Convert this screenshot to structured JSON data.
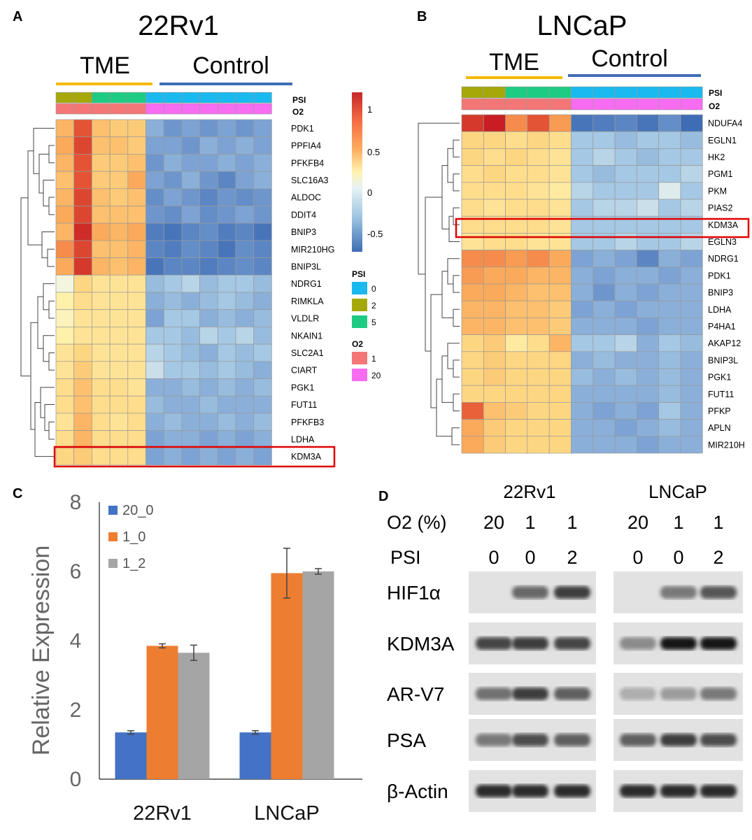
{
  "panelA": {
    "letter": "A",
    "title": "22Rv1",
    "group_tme": "TME",
    "group_control": "Control",
    "row_labels": [
      "PDK1",
      "PPFIA4",
      "PFKFB4",
      "SLC16A3",
      "ALDOC",
      "DDIT4",
      "BNIP3",
      "MIR210HG",
      "BNIP3L",
      "NDRG1",
      "RIMKLA",
      "VLDLR",
      "NKAIN1",
      "SLC2A1",
      "CIART",
      "PGK1",
      "FUT11",
      "PFKFB3",
      "LDHA",
      "KDM3A"
    ],
    "highlight_row": "KDM3A",
    "annotation_labels": [
      "PSI",
      "O2"
    ],
    "psi_cols": [
      2,
      2,
      5,
      5,
      5,
      0,
      0,
      0,
      0,
      0,
      0,
      0
    ],
    "o2_cols": [
      1,
      1,
      1,
      1,
      1,
      20,
      20,
      20,
      20,
      20,
      20,
      20
    ],
    "values": [
      [
        0.55,
        0.9,
        0.5,
        0.45,
        0.45,
        -0.3,
        -0.4,
        -0.35,
        -0.4,
        -0.35,
        -0.4,
        -0.35
      ],
      [
        0.6,
        0.95,
        0.5,
        0.5,
        0.45,
        -0.35,
        -0.35,
        -0.4,
        -0.3,
        -0.35,
        -0.3,
        -0.35
      ],
      [
        0.55,
        0.9,
        0.45,
        0.45,
        0.5,
        -0.4,
        -0.3,
        -0.35,
        -0.35,
        -0.3,
        -0.35,
        -0.3
      ],
      [
        0.5,
        0.9,
        0.45,
        0.45,
        0.6,
        -0.35,
        -0.4,
        -0.3,
        -0.4,
        -0.5,
        -0.35,
        -0.3
      ],
      [
        0.55,
        0.95,
        0.5,
        0.45,
        0.5,
        -0.45,
        -0.35,
        -0.4,
        -0.5,
        -0.4,
        -0.45,
        -0.4
      ],
      [
        0.6,
        0.95,
        0.5,
        0.5,
        0.5,
        -0.4,
        -0.45,
        -0.35,
        -0.45,
        -0.4,
        -0.35,
        -0.4
      ],
      [
        0.55,
        1.05,
        0.6,
        0.55,
        0.6,
        -0.55,
        -0.6,
        -0.5,
        -0.45,
        -0.55,
        -0.5,
        -0.6
      ],
      [
        0.7,
        0.95,
        0.5,
        0.5,
        0.55,
        -0.5,
        -0.55,
        -0.45,
        -0.5,
        -0.6,
        -0.45,
        -0.5
      ],
      [
        0.6,
        1.0,
        0.55,
        0.5,
        0.55,
        -0.6,
        -0.5,
        -0.5,
        -0.55,
        -0.5,
        -0.45,
        -0.5
      ],
      [
        0.05,
        0.4,
        0.3,
        0.3,
        0.3,
        -0.25,
        -0.2,
        -0.15,
        -0.25,
        -0.2,
        -0.2,
        -0.25
      ],
      [
        0.2,
        0.35,
        0.3,
        0.3,
        0.3,
        -0.3,
        -0.25,
        -0.3,
        -0.25,
        -0.2,
        -0.25,
        -0.3
      ],
      [
        0.15,
        0.3,
        0.3,
        0.3,
        0.3,
        -0.35,
        -0.2,
        -0.2,
        -0.3,
        -0.25,
        -0.3,
        -0.25
      ],
      [
        0.2,
        0.3,
        0.3,
        0.3,
        0.3,
        -0.2,
        -0.2,
        -0.25,
        -0.15,
        -0.2,
        -0.15,
        -0.25
      ],
      [
        0.3,
        0.4,
        0.3,
        0.3,
        0.3,
        -0.15,
        -0.2,
        -0.25,
        -0.3,
        -0.2,
        -0.25,
        -0.2
      ],
      [
        0.3,
        0.45,
        0.3,
        0.3,
        0.3,
        -0.1,
        -0.2,
        -0.2,
        -0.25,
        -0.2,
        -0.25,
        -0.3
      ],
      [
        0.35,
        0.5,
        0.35,
        0.35,
        0.3,
        -0.3,
        -0.3,
        -0.25,
        -0.3,
        -0.25,
        -0.3,
        -0.25
      ],
      [
        0.35,
        0.5,
        0.35,
        0.35,
        0.35,
        -0.25,
        -0.3,
        -0.3,
        -0.25,
        -0.3,
        -0.3,
        -0.3
      ],
      [
        0.3,
        0.55,
        0.35,
        0.3,
        0.35,
        -0.3,
        -0.25,
        -0.3,
        -0.3,
        -0.25,
        -0.3,
        -0.25
      ],
      [
        0.35,
        0.55,
        0.35,
        0.35,
        0.35,
        -0.35,
        -0.3,
        -0.3,
        -0.35,
        -0.3,
        -0.35,
        -0.3
      ],
      [
        0.4,
        0.45,
        0.35,
        0.35,
        0.35,
        -0.35,
        -0.3,
        -0.35,
        -0.3,
        -0.35,
        -0.3,
        -0.35
      ]
    ]
  },
  "legend": {
    "scale_ticks": [
      "1",
      "0.5",
      "0",
      "-0.5"
    ],
    "psi_title": "PSI",
    "psi_items": [
      "0",
      "2",
      "5"
    ],
    "o2_title": "O2",
    "o2_items": [
      "1",
      "20"
    ]
  },
  "panelB": {
    "letter": "B",
    "title": "LNCaP",
    "group_tme": "TME",
    "group_control": "Control",
    "row_labels": [
      "NDUFA4",
      "EGLN1",
      "HK2",
      "PGM1",
      "PKM",
      "PIAS2",
      "KDM3A",
      "EGLN3",
      "NDRG1",
      "PDK1",
      "BNIP3",
      "LDHA",
      "P4HA1",
      "AKAP12",
      "BNIP3L",
      "PGK1",
      "FUT11",
      "PFKP",
      "APLN",
      "MIR210H"
    ],
    "highlight_row": "KDM3A",
    "annotation_labels": [
      "PSI",
      "O2"
    ],
    "psi_cols": [
      2,
      2,
      5,
      5,
      5,
      0,
      0,
      0,
      0,
      0,
      0
    ],
    "o2_cols": [
      1,
      1,
      1,
      1,
      1,
      20,
      20,
      20,
      20,
      20,
      20
    ],
    "values": [
      [
        1.0,
        1.1,
        0.7,
        0.9,
        0.65,
        -0.6,
        -0.55,
        -0.5,
        -0.6,
        -0.45,
        -0.7
      ],
      [
        0.4,
        0.4,
        0.35,
        0.4,
        0.35,
        -0.2,
        -0.2,
        -0.25,
        -0.2,
        -0.2,
        -0.25
      ],
      [
        0.4,
        0.35,
        0.4,
        0.35,
        0.3,
        -0.2,
        -0.15,
        -0.2,
        -0.25,
        -0.2,
        -0.2
      ],
      [
        0.35,
        0.4,
        0.35,
        0.35,
        0.3,
        -0.2,
        -0.25,
        -0.2,
        -0.2,
        -0.2,
        -0.15
      ],
      [
        0.35,
        0.35,
        0.35,
        0.3,
        0.25,
        -0.15,
        -0.2,
        -0.2,
        -0.2,
        -0.05,
        -0.2
      ],
      [
        0.35,
        0.3,
        0.35,
        0.35,
        0.3,
        -0.2,
        -0.15,
        -0.15,
        -0.1,
        -0.2,
        -0.15
      ],
      [
        0.35,
        0.35,
        0.35,
        0.35,
        0.3,
        -0.2,
        -0.2,
        -0.2,
        -0.2,
        -0.2,
        -0.2
      ],
      [
        0.3,
        0.35,
        0.35,
        0.3,
        0.3,
        -0.2,
        -0.2,
        -0.15,
        -0.2,
        -0.2,
        -0.15
      ],
      [
        0.7,
        0.7,
        0.65,
        0.7,
        0.6,
        -0.35,
        -0.3,
        -0.35,
        -0.5,
        -0.3,
        -0.35
      ],
      [
        0.65,
        0.6,
        0.6,
        0.55,
        0.55,
        -0.3,
        -0.35,
        -0.3,
        -0.3,
        -0.35,
        -0.3
      ],
      [
        0.6,
        0.6,
        0.55,
        0.5,
        0.5,
        -0.3,
        -0.4,
        -0.3,
        -0.35,
        -0.3,
        -0.3
      ],
      [
        0.55,
        0.55,
        0.5,
        0.5,
        0.45,
        -0.35,
        -0.3,
        -0.35,
        -0.3,
        -0.3,
        -0.3
      ],
      [
        0.55,
        0.55,
        0.5,
        0.5,
        0.45,
        -0.3,
        -0.3,
        -0.3,
        -0.35,
        -0.3,
        -0.3
      ],
      [
        0.4,
        0.45,
        0.25,
        0.35,
        0.55,
        -0.2,
        -0.2,
        -0.15,
        -0.3,
        -0.2,
        -0.25
      ],
      [
        0.4,
        0.45,
        0.4,
        0.4,
        0.4,
        -0.3,
        -0.25,
        -0.3,
        -0.3,
        -0.25,
        -0.3
      ],
      [
        0.4,
        0.45,
        0.4,
        0.4,
        0.4,
        -0.25,
        -0.3,
        -0.25,
        -0.3,
        -0.25,
        -0.3
      ],
      [
        0.4,
        0.4,
        0.4,
        0.4,
        0.4,
        -0.3,
        -0.3,
        -0.3,
        -0.3,
        -0.25,
        -0.3
      ],
      [
        0.85,
        0.5,
        0.45,
        0.4,
        0.4,
        -0.3,
        -0.35,
        -0.3,
        -0.35,
        -0.2,
        -0.3
      ],
      [
        0.6,
        0.45,
        0.4,
        0.4,
        0.4,
        -0.3,
        -0.3,
        -0.35,
        -0.3,
        -0.25,
        -0.3
      ],
      [
        0.6,
        0.45,
        0.4,
        0.4,
        0.4,
        -0.3,
        -0.3,
        -0.3,
        -0.35,
        -0.3,
        -0.3
      ]
    ]
  },
  "panelC": {
    "letter": "C"
  },
  "chart_data": {
    "type": "bar",
    "title": "",
    "xlabel": "",
    "ylabel": "Relative Expression",
    "categories": [
      "22Rv1",
      "LNCaP"
    ],
    "series": [
      {
        "name": "20_0",
        "color": "#4472C4",
        "values": [
          1.35,
          1.35
        ],
        "errors": [
          0.05,
          0.05
        ]
      },
      {
        "name": "1_0",
        "color": "#ED7D31",
        "values": [
          3.85,
          5.95
        ],
        "errors": [
          0.06,
          0.72
        ]
      },
      {
        "name": "1_2",
        "color": "#A5A5A5",
        "values": [
          3.65,
          6.0
        ],
        "errors": [
          0.22,
          0.08
        ]
      }
    ],
    "ylim": [
      0,
      8
    ],
    "yticks": [
      "0",
      "2",
      "4",
      "6",
      "8"
    ],
    "legend_position": "top-left"
  },
  "panelD": {
    "letter": "D",
    "cell_lines": [
      "22Rv1",
      "LNCaP"
    ],
    "o2_label": "O2 (%)",
    "psi_label": "PSI",
    "o2_values": [
      "20",
      "1",
      "1"
    ],
    "psi_values": [
      "0",
      "0",
      "2"
    ],
    "proteins": [
      "HIF1α",
      "KDM3A",
      "AR-V7",
      "PSA",
      "β-Actin"
    ],
    "band_intensity": {
      "22Rv1": [
        [
          0.02,
          0.55,
          0.8
        ],
        [
          0.75,
          0.8,
          0.75
        ],
        [
          0.5,
          0.8,
          0.6
        ],
        [
          0.45,
          0.7,
          0.6
        ],
        [
          0.9,
          0.9,
          0.9
        ]
      ],
      "LNCaP": [
        [
          0.02,
          0.45,
          0.65
        ],
        [
          0.35,
          1.0,
          1.0
        ],
        [
          0.15,
          0.25,
          0.45
        ],
        [
          0.6,
          0.8,
          0.7
        ],
        [
          0.9,
          0.9,
          0.9
        ]
      ]
    }
  }
}
